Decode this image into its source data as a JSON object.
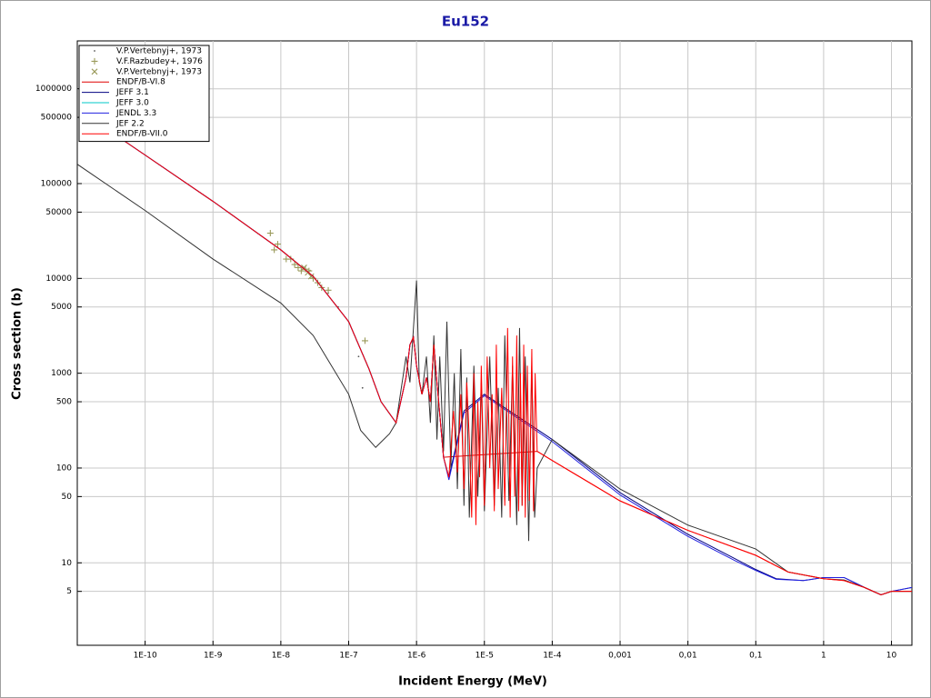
{
  "chart_data": {
    "type": "line",
    "title": "Eu152",
    "xlabel": "Incident Energy (MeV)",
    "ylabel": "Cross section (b)",
    "xscale": "log",
    "yscale": "log",
    "grid": true,
    "legend": "upper left",
    "xlim": [
      1e-11,
      20
    ],
    "ylim": [
      1.35,
      3200000
    ],
    "xticks": [
      {
        "value": 1e-10,
        "label": "1E-10"
      },
      {
        "value": 1e-09,
        "label": "1E-9"
      },
      {
        "value": 1e-08,
        "label": "1E-8"
      },
      {
        "value": 1e-07,
        "label": "1E-7"
      },
      {
        "value": 1e-06,
        "label": "1E-6"
      },
      {
        "value": 1e-05,
        "label": "1E-5"
      },
      {
        "value": 0.0001,
        "label": "1E-4"
      },
      {
        "value": 0.001,
        "label": "0,001"
      },
      {
        "value": 0.01,
        "label": "0,01"
      },
      {
        "value": 0.1,
        "label": "0,1"
      },
      1,
      10
    ],
    "yticks": [
      5,
      10,
      50,
      100,
      500,
      1000,
      5000,
      10000,
      50000,
      100000,
      500000,
      1000000
    ],
    "series": [
      {
        "name": "V.P.Vertebnyj+, 1973",
        "kind": "scatter",
        "marker": "dot",
        "color": "#555555",
        "x": [
          5e-08,
          7e-08,
          1.4e-07,
          1.6e-07
        ],
        "values": [
          7000,
          5000,
          1500,
          700
        ]
      },
      {
        "name": "V.F.Razbudey+, 1976",
        "kind": "scatter",
        "marker": "plus",
        "color": "#9a9a5a",
        "x": [
          7e-09,
          8e-09,
          9e-09,
          1.2e-08,
          1.4e-08,
          1.6e-08,
          1.8e-08,
          2e-08,
          2.3e-08,
          2.6e-08,
          3e-08,
          3.5e-08,
          4e-08,
          5e-08,
          1.74e-07
        ],
        "values": [
          30000,
          20000,
          23000,
          16000,
          16000,
          14000,
          13000,
          12000,
          12500,
          12000,
          10000,
          9000,
          8000,
          7500,
          2200
        ]
      },
      {
        "name": "V.P.Vertebnyj+, 1973",
        "kind": "scatter",
        "marker": "cross",
        "color": "#9a9a5a",
        "x": [
          2.2e-08,
          2.5e-08,
          2.8e-08
        ],
        "values": [
          13000,
          11500,
          10500
        ]
      },
      {
        "name": "ENDF/B-VI.8",
        "kind": "line",
        "color": "#e00000",
        "x": [
          5e-11,
          1e-10,
          1e-09,
          1e-08,
          3e-08,
          1e-07,
          2e-07,
          3e-07,
          5e-07,
          7e-07,
          8e-07,
          9e-07,
          1e-06,
          1.2e-06,
          1.4e-06,
          1.6e-06,
          1.8e-06,
          2e-06,
          2.5e-06,
          6e-05,
          0.0001,
          0.001,
          0.01,
          0.1,
          0.3,
          1,
          2,
          4,
          7,
          10,
          20
        ],
        "values": [
          280000,
          200000,
          65000,
          20000,
          10500,
          3500,
          1100,
          500,
          300,
          900,
          2000,
          2400,
          1200,
          600,
          900,
          500,
          2000,
          800,
          130,
          150,
          120,
          45,
          22,
          12,
          8,
          6.8,
          6.5,
          5.5,
          4.6,
          5,
          5
        ]
      },
      {
        "name": "JEFF 3.1",
        "kind": "line",
        "color": "#000080",
        "x": [
          5e-11,
          1e-10,
          1e-09,
          1e-08,
          3e-08,
          1e-07,
          2e-07,
          3e-07,
          5e-07,
          7e-07,
          8e-07,
          9e-07,
          1e-06,
          1.2e-06,
          1.4e-06,
          1.6e-06,
          1.8e-06,
          2e-06,
          2.5e-06,
          3e-06,
          5e-06,
          1e-05,
          0.0001,
          0.001,
          0.01,
          0.05,
          0.1,
          0.2,
          0.5,
          1,
          2,
          4,
          7,
          10,
          20
        ],
        "values": [
          280000,
          200000,
          65000,
          20000,
          10500,
          3500,
          1100,
          500,
          300,
          900,
          2000,
          2400,
          1200,
          600,
          900,
          500,
          2000,
          800,
          130,
          80,
          400,
          600,
          200,
          55,
          20,
          11,
          8.5,
          6.8,
          6.5,
          7,
          7,
          5.5,
          4.6,
          5,
          5.5
        ]
      },
      {
        "name": "JEFF 3.0",
        "kind": "line",
        "color": "#00c8c8",
        "x": [
          5e-11,
          1e-10,
          1e-09,
          1e-08,
          3e-08,
          1e-07,
          2e-07,
          3e-07,
          5e-07
        ],
        "values": [
          280000,
          200000,
          65000,
          20000,
          10500,
          3500,
          1100,
          500,
          300
        ]
      },
      {
        "name": "JENDL 3.3",
        "kind": "line",
        "color": "#2020e0",
        "x": [
          5e-11,
          1e-10,
          1e-09,
          1e-08,
          3e-08,
          1e-07,
          2e-07,
          3e-07,
          5e-07,
          7e-07,
          8e-07,
          9e-07,
          1e-06,
          1.2e-06,
          1.4e-06,
          1.6e-06,
          1.8e-06,
          2e-06,
          2.5e-06,
          3e-06,
          5e-06,
          1e-05,
          0.0001,
          0.001,
          0.01,
          0.05,
          0.1,
          0.2,
          0.5,
          1,
          2,
          4,
          7,
          10,
          20
        ],
        "values": [
          280000,
          200000,
          65000,
          20000,
          10500,
          3500,
          1100,
          500,
          300,
          900,
          2000,
          2400,
          1200,
          600,
          900,
          500,
          2000,
          800,
          130,
          75,
          380,
          580,
          190,
          52,
          19,
          10.5,
          8.3,
          6.7,
          6.5,
          7,
          7,
          5.5,
          4.6,
          5,
          5.5
        ]
      },
      {
        "name": "JEF 2.2",
        "kind": "line",
        "color": "#333333",
        "x": [
          1e-11,
          1e-10,
          1e-09,
          1e-08,
          3e-08,
          1e-07,
          1.5e-07,
          2.5e-07,
          4e-07,
          5e-07,
          7e-07,
          8e-07,
          1e-06,
          1.1e-06,
          1.2e-06,
          1.4e-06,
          1.6e-06,
          1.8e-06,
          2e-06,
          2.2e-06,
          2.5e-06,
          2.8e-06,
          3.2e-06,
          3.6e-06,
          4e-06,
          4.5e-06,
          5e-06,
          5.5e-06,
          6e-06,
          7e-06,
          8e-06,
          9e-06,
          1e-05,
          1.2e-05,
          1.4e-05,
          1.6e-05,
          1.8e-05,
          2e-05,
          2.3e-05,
          2.6e-05,
          3e-05,
          3.3e-05,
          3.6e-05,
          4e-05,
          4.5e-05,
          5e-05,
          5.5e-05,
          6e-05,
          0.0001,
          0.001,
          0.01,
          0.1,
          0.3,
          1,
          2,
          4,
          7,
          10,
          20
        ],
        "values": [
          160000,
          52000,
          16000,
          5500,
          2500,
          600,
          250,
          165,
          230,
          300,
          1500,
          800,
          9500,
          800,
          600,
          1500,
          300,
          2500,
          200,
          1500,
          150,
          3500,
          100,
          1000,
          60,
          1800,
          40,
          900,
          30,
          1200,
          50,
          800,
          35,
          1500,
          40,
          700,
          30,
          2500,
          45,
          1200,
          25,
          3000,
          40,
          1500,
          17,
          1200,
          30,
          100,
          200,
          60,
          25,
          14,
          8,
          6.8,
          6.6,
          5.5,
          4.6,
          5,
          5
        ]
      },
      {
        "name": "ENDF/B-VII.0",
        "kind": "line",
        "color": "#ff0000",
        "x": [
          5e-11,
          1e-10,
          1e-09,
          1e-08,
          3e-08,
          1e-07,
          2e-07,
          3e-07,
          5e-07,
          7e-07,
          8e-07,
          9e-07,
          1e-06,
          1.2e-06,
          1.4e-06,
          1.6e-06,
          1.8e-06,
          2e-06,
          2.5e-06,
          3e-06,
          3.5e-06,
          4e-06,
          4.5e-06,
          5e-06,
          5.5e-06,
          6e-06,
          6.5e-06,
          7e-06,
          7.5e-06,
          8e-06,
          8.5e-06,
          9e-06,
          1e-05,
          1.1e-05,
          1.2e-05,
          1.3e-05,
          1.4e-05,
          1.5e-05,
          1.6e-05,
          1.8e-05,
          2e-05,
          2.2e-05,
          2.4e-05,
          2.6e-05,
          2.8e-05,
          3e-05,
          3.2e-05,
          3.4e-05,
          3.6e-05,
          3.8e-05,
          4e-05,
          4.3e-05,
          4.6e-05,
          5e-05,
          5.3e-05,
          5.6e-05,
          6e-05,
          0.0001,
          0.001,
          0.01,
          0.1,
          0.3,
          1,
          2,
          4,
          7,
          10,
          20
        ],
        "values": [
          280000,
          200000,
          65000,
          20000,
          10500,
          3500,
          1100,
          500,
          300,
          900,
          2000,
          2400,
          1200,
          600,
          900,
          500,
          2000,
          800,
          130,
          80,
          400,
          90,
          600,
          60,
          800,
          200,
          30,
          1000,
          25,
          500,
          80,
          1200,
          40,
          1500,
          100,
          600,
          35,
          2000,
          60,
          700,
          40,
          3000,
          30,
          1500,
          50,
          2500,
          35,
          1000,
          40,
          2000,
          30,
          1200,
          45,
          1800,
          35,
          1000,
          150,
          120,
          45,
          22,
          12,
          8,
          6.8,
          6.5,
          5.5,
          4.6,
          5,
          5
        ]
      }
    ]
  }
}
